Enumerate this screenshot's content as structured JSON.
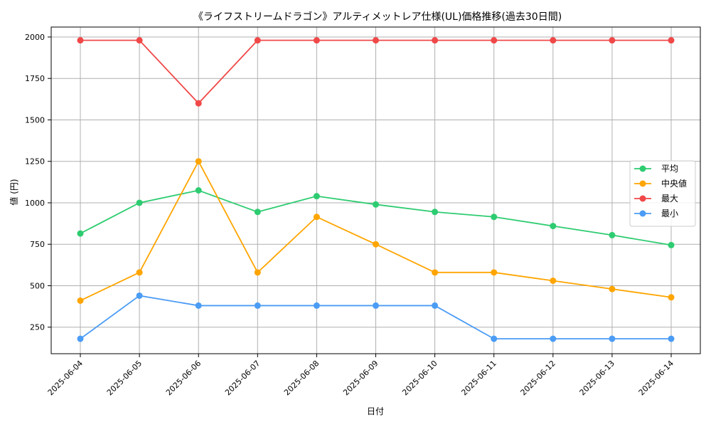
{
  "chart_data": {
    "type": "line",
    "title": "《ライフストリームドラゴン》アルティメットレア仕様(UL)価格推移(過去30日間)",
    "xlabel": "日付",
    "ylabel": "値 (円)",
    "categories": [
      "2025-06-04",
      "2025-06-05",
      "2025-06-06",
      "2025-06-07",
      "2025-06-08",
      "2025-06-09",
      "2025-06-10",
      "2025-06-11",
      "2025-06-12",
      "2025-06-13",
      "2025-06-14"
    ],
    "ylim": [
      90,
      2060
    ],
    "yticks": [
      250,
      500,
      750,
      1000,
      1250,
      1500,
      1750,
      2000
    ],
    "grid": true,
    "legend_position": "center-right",
    "series": [
      {
        "name": "平均",
        "color": "#2ecc71",
        "values": [
          815,
          1000,
          1075,
          945,
          1040,
          990,
          945,
          915,
          860,
          805,
          745
        ]
      },
      {
        "name": "中央値",
        "color": "#ffa500",
        "values": [
          410,
          580,
          1250,
          580,
          915,
          750,
          580,
          580,
          530,
          480,
          430
        ]
      },
      {
        "name": "最大",
        "color": "#f04848",
        "values": [
          1980,
          1980,
          1600,
          1980,
          1980,
          1980,
          1980,
          1980,
          1980,
          1980,
          1980
        ]
      },
      {
        "name": "最小",
        "color": "#4b9cf5",
        "values": [
          180,
          440,
          380,
          380,
          380,
          380,
          380,
          180,
          180,
          180,
          180
        ]
      }
    ]
  }
}
